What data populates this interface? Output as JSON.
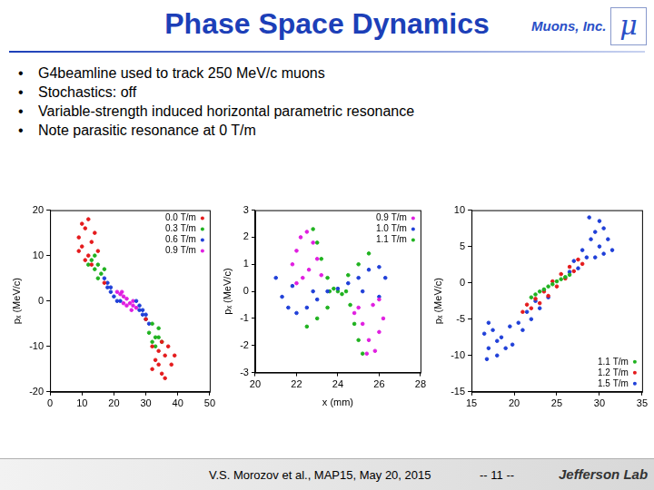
{
  "title": "Phase Space Dynamics",
  "logo_text": "Muons, Inc.",
  "logo_symbol": "μ",
  "bullets": [
    "G4beamline used to track 250 MeV/c muons",
    "Stochastics: off",
    "Variable-strength induced horizontal parametric resonance",
    "Note parasitic resonance at 0 T/m"
  ],
  "footer": {
    "reference": "V.S. Morozov et al., MAP15, May 20, 2015",
    "page": "-- 11 --",
    "institution": "Jefferson Lab"
  },
  "chart_data": [
    {
      "type": "scatter",
      "ylabel": "pₓ (MeV/c)",
      "xlim": [
        0,
        50
      ],
      "xticks": [
        0,
        10,
        20,
        30,
        40,
        50
      ],
      "ylim": [
        -20,
        20
      ],
      "yticks": [
        -20,
        -10,
        0,
        10,
        20
      ],
      "grid": false,
      "legend": "top-right",
      "marker": "circle",
      "series": [
        {
          "name": "0.0 T/m",
          "color": "#e41a1c",
          "x": [
            9,
            10,
            11,
            12,
            13,
            11,
            14,
            10,
            12,
            15,
            9,
            13,
            32,
            34,
            36,
            35,
            37,
            33,
            38,
            35,
            36,
            34,
            39,
            32,
            17,
            30
          ],
          "values": [
            14,
            12,
            16,
            10,
            13,
            9,
            15,
            17,
            18,
            11,
            11,
            8,
            -10,
            -14,
            -12,
            -16,
            -10,
            -13,
            -14,
            -9,
            -17,
            -11,
            -12,
            -15,
            4,
            -4
          ]
        },
        {
          "name": "0.3 T/m",
          "color": "#1fb21f",
          "x": [
            13,
            14,
            15,
            16,
            14,
            15,
            12,
            17,
            31,
            32,
            33,
            34,
            35,
            32,
            33,
            34
          ],
          "values": [
            9,
            7,
            8,
            6,
            10,
            5,
            8,
            7,
            -7,
            -9,
            -8,
            -6,
            -9,
            -5,
            -10,
            -8
          ]
        },
        {
          "name": "0.6 T/m",
          "color": "#1f3fd8",
          "x": [
            17,
            18,
            18,
            19,
            20,
            19,
            21,
            22,
            27,
            28,
            29,
            30,
            30,
            31,
            29,
            28
          ],
          "values": [
            5,
            3,
            4,
            2,
            1,
            3,
            0,
            0,
            0,
            -1,
            -2,
            -3,
            -4,
            -5,
            -3,
            -2
          ]
        },
        {
          "name": "0.9 T/m",
          "color": "#e01ee0",
          "x": [
            21,
            22,
            23,
            24,
            25,
            26,
            27,
            22.5,
            25.5,
            26,
            23,
            24
          ],
          "values": [
            2,
            1.5,
            1,
            0.5,
            -0.5,
            -1,
            -1.5,
            2,
            -2,
            0,
            -0.5,
            -1
          ]
        }
      ]
    },
    {
      "type": "scatter",
      "xlabel": "x (mm)",
      "ylabel": "pₓ (MeV/c)",
      "xlim": [
        20,
        28
      ],
      "xticks": [
        20,
        22,
        24,
        26,
        28
      ],
      "ylim": [
        -3,
        3
      ],
      "yticks": [
        -3,
        -2,
        -1,
        0,
        1,
        2,
        3
      ],
      "grid": false,
      "legend": "top-right",
      "marker": "circle",
      "series": [
        {
          "name": "0.9 T/m",
          "color": "#e01ee0",
          "x": [
            21.8,
            22.0,
            22.2,
            22.5,
            22.8,
            23.0,
            22.3,
            22.6,
            23.2,
            22.0,
            25.0,
            25.2,
            25.5,
            25.8,
            26.0,
            26.2,
            25.7,
            25.4,
            24.8,
            26.0
          ],
          "values": [
            1.0,
            1.5,
            2.0,
            2.2,
            1.8,
            1.2,
            0.5,
            0.8,
            0.6,
            0.3,
            -0.6,
            -1.2,
            -1.8,
            -2.2,
            -1.5,
            -1.0,
            -0.5,
            -2.3,
            -0.8,
            -0.3
          ]
        },
        {
          "name": "1.0 T/m",
          "color": "#1f3fd8",
          "x": [
            21.0,
            21.3,
            21.6,
            22.0,
            22.5,
            23.0,
            23.5,
            24.0,
            24.5,
            25.0,
            25.5,
            26.0,
            26.3,
            22.8,
            25.2,
            21.8,
            26.0
          ],
          "values": [
            0.5,
            -0.2,
            -0.6,
            -0.8,
            -0.6,
            -0.3,
            0.0,
            0.1,
            0.3,
            0.5,
            0.8,
            0.9,
            0.5,
            0.0,
            0.0,
            0.2,
            -0.2
          ]
        },
        {
          "name": "1.1 T/m",
          "color": "#1fb21f",
          "x": [
            23.6,
            23.8,
            24.0,
            24.2,
            24.4,
            23.5,
            23.2,
            23.0,
            22.8,
            24.6,
            24.8,
            25.0,
            25.2,
            24.5,
            25.0,
            25.5,
            23.5,
            23.0,
            22.5
          ],
          "values": [
            0.0,
            0.1,
            0.0,
            -0.1,
            0.0,
            0.5,
            1.2,
            1.8,
            2.3,
            -0.5,
            -1.2,
            -1.8,
            -2.3,
            0.6,
            1.0,
            1.4,
            -0.6,
            -1.0,
            -1.3
          ]
        }
      ]
    },
    {
      "type": "scatter",
      "ylabel": "pₓ (MeV/c)",
      "xlim": [
        15,
        35
      ],
      "xticks": [
        15,
        20,
        25,
        30,
        35
      ],
      "ylim": [
        -15,
        10
      ],
      "yticks": [
        -15,
        -10,
        -5,
        0,
        5,
        10
      ],
      "grid": false,
      "legend": "bottom-right",
      "marker": "circle",
      "series": [
        {
          "name": "1.1 T/m",
          "color": "#1fb21f",
          "x": [
            22,
            22.5,
            23,
            23.5,
            24,
            24.5,
            25,
            25.5,
            26,
            26.5
          ],
          "values": [
            -2,
            -1.6,
            -1.2,
            -0.9,
            -0.5,
            -0.2,
            0.2,
            0.5,
            0.8,
            1.1
          ]
        },
        {
          "name": "1.2 T/m",
          "color": "#e41a1c",
          "x": [
            21,
            21.5,
            22,
            22.5,
            23,
            23.5,
            24,
            24.5,
            25,
            25.5,
            26,
            26.5,
            27,
            27.5,
            28
          ],
          "values": [
            -4,
            -3,
            -3.5,
            -2.2,
            -2.8,
            -1.2,
            -1.8,
            0.2,
            -0.5,
            1.2,
            0.6,
            2.2,
            1.6,
            3.2,
            2.6
          ]
        },
        {
          "name": "1.5 T/m",
          "color": "#1f3fd8",
          "x": [
            16.5,
            17,
            17.5,
            18,
            18.5,
            19,
            19.5,
            18,
            17,
            19.8,
            16.8,
            20.5,
            21,
            21.5,
            22,
            22.5,
            23,
            23.5,
            24,
            26.5,
            27,
            27.5,
            28,
            28.5,
            29,
            29.5,
            30,
            30.5,
            31,
            30,
            29.5,
            31.5,
            28.8,
            30.5
          ],
          "values": [
            -7,
            -9,
            -6.5,
            -10,
            -7.5,
            -9,
            -6,
            -8,
            -5.5,
            -8.5,
            -10.5,
            -5.5,
            -6.5,
            -4,
            -5,
            -2.5,
            -3.5,
            -1,
            -2,
            1.5,
            3,
            2,
            4.5,
            3.5,
            6,
            7,
            5,
            4,
            6,
            8.5,
            3.5,
            4.5,
            9,
            7.5
          ]
        }
      ]
    }
  ]
}
